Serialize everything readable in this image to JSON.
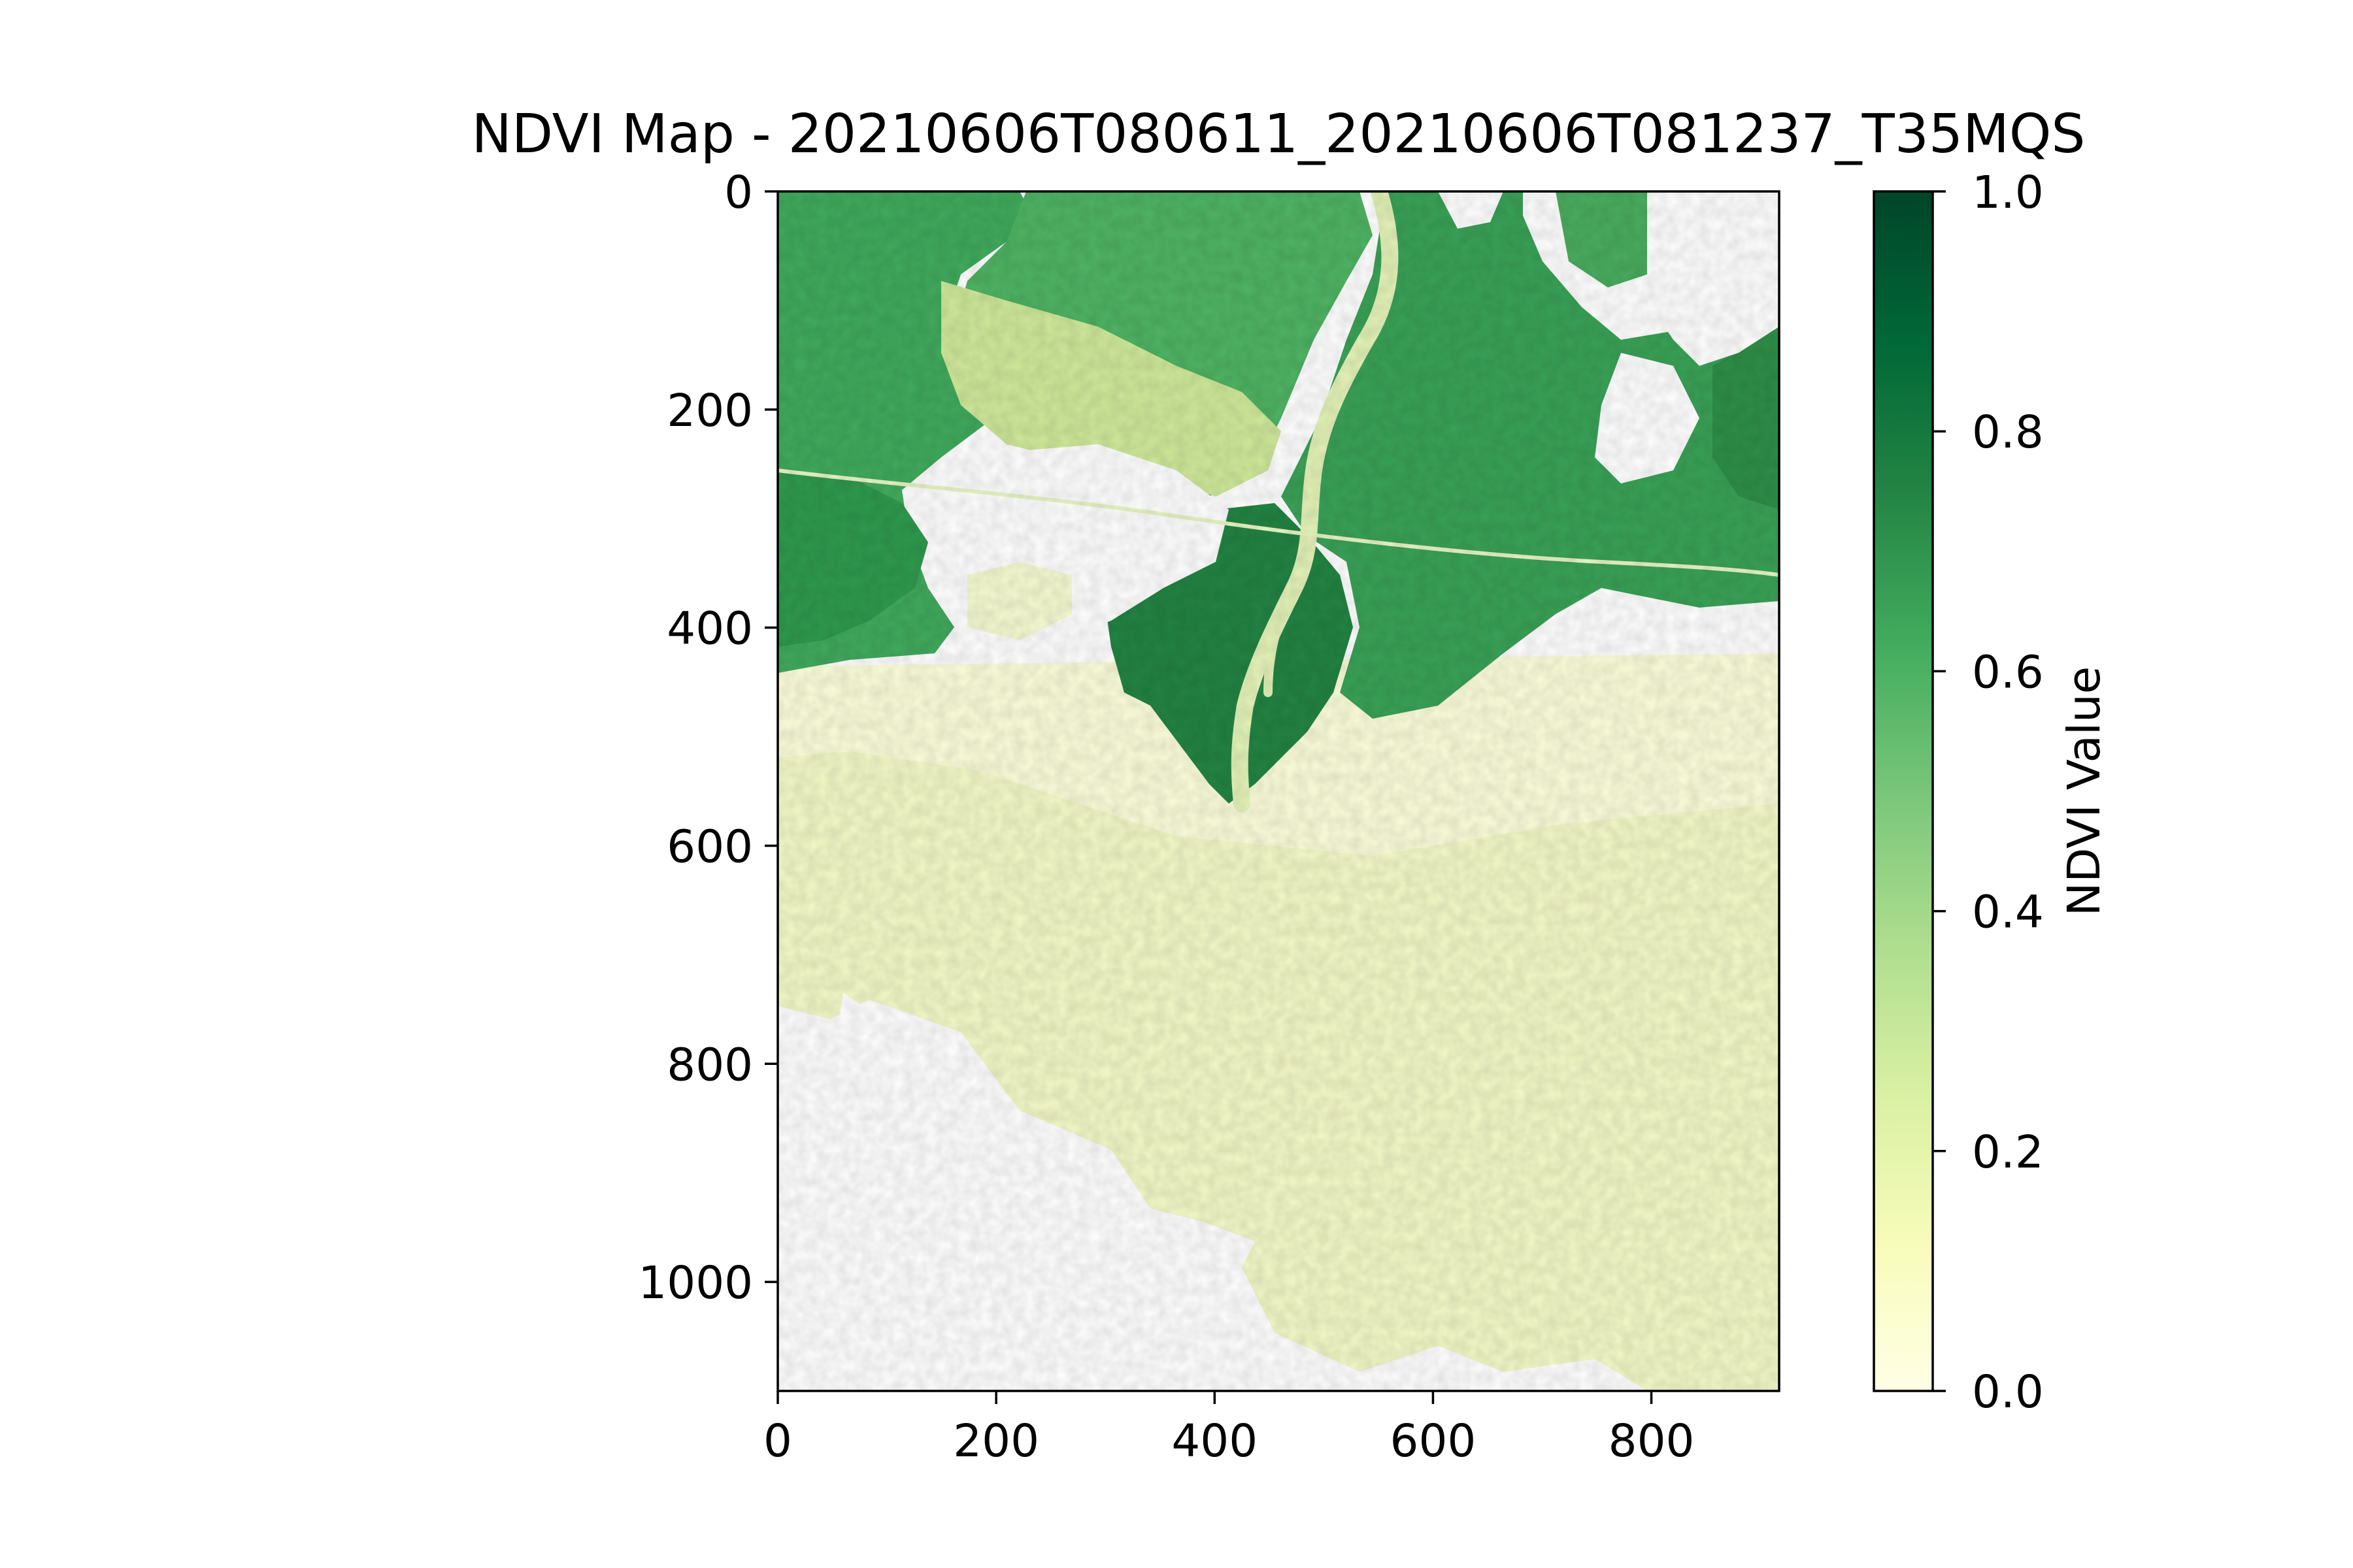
{
  "chart_data": {
    "type": "heatmap",
    "title": "NDVI Map - 20210606T080611_20210606T081237_T35MQS",
    "xlabel": "",
    "ylabel": "",
    "xlim": [
      0,
      917
    ],
    "ylim": [
      1100,
      0
    ],
    "x_ticks": [
      0,
      200,
      400,
      600,
      800
    ],
    "y_ticks": [
      0,
      200,
      400,
      600,
      800,
      1000
    ],
    "colorbar": {
      "label": "NDVI Value",
      "range": [
        0.0,
        1.0
      ],
      "ticks": [
        "0.0",
        "0.2",
        "0.4",
        "0.6",
        "0.8",
        "1.0"
      ],
      "colormap": "YlGn"
    },
    "colormap_stops": [
      "#ffffe5",
      "#f7fcb9",
      "#d9f0a3",
      "#addd8e",
      "#78c679",
      "#41ab5d",
      "#238443",
      "#006837",
      "#004529"
    ],
    "regions": [
      {
        "name": "northern vegetated land",
        "ndvi_range": [
          0.4,
          0.9
        ]
      },
      {
        "name": "river and delta channel",
        "ndvi_range": [
          0.0,
          0.3
        ]
      },
      {
        "name": "southern sparse region",
        "ndvi_range": [
          0.0,
          0.2
        ]
      },
      {
        "name": "no-data / masked areas",
        "ndvi_range": null
      }
    ],
    "grid": false
  }
}
